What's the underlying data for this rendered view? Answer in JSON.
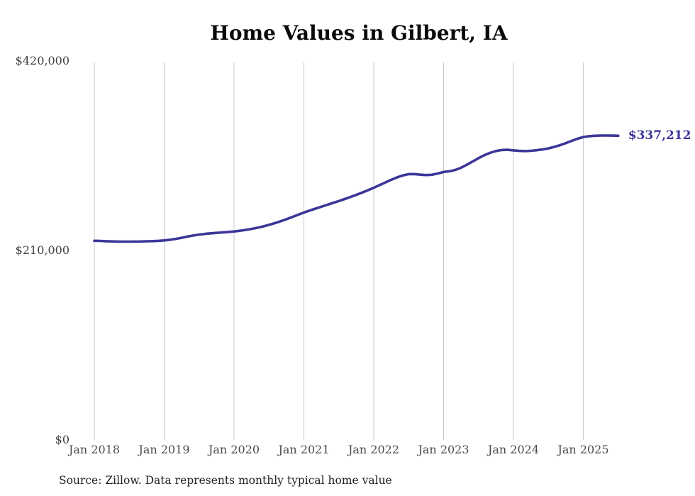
{
  "chart": {
    "title": "Home Values in Gilbert, IA",
    "end_label": "$337,212",
    "source_note": "Source: Zillow. Data represents monthly typical home value"
  },
  "chart_data": {
    "type": "line",
    "title": "Home Values in Gilbert, IA",
    "xlabel": "",
    "ylabel": "",
    "x_start": "Jan 2018",
    "x_end": "Jul 2025",
    "frequency": "monthly",
    "xtick_labels": [
      "Jan 2018",
      "Jan 2019",
      "Jan 2020",
      "Jan 2021",
      "Jan 2022",
      "Jan 2023",
      "Jan 2024",
      "Jan 2025"
    ],
    "ytick_values": [
      0,
      210000,
      420000
    ],
    "ytick_labels": [
      "$0",
      "$210,000",
      "$420,000"
    ],
    "ylim": [
      0,
      420000
    ],
    "grid": "vertical-only",
    "legend_position": "none",
    "line_color": "#3c3699",
    "gridline_color": "#c9c9c9",
    "final_value": 337212,
    "final_value_label": "$337,212",
    "series": [
      {
        "name": "Typical home value",
        "values": [
          220800,
          220600,
          220300,
          220100,
          219900,
          219800,
          219800,
          219900,
          220000,
          220200,
          220400,
          220700,
          221200,
          221900,
          222900,
          224100,
          225400,
          226600,
          227600,
          228400,
          229000,
          229500,
          230000,
          230500,
          231100,
          231900,
          232800,
          233900,
          235200,
          236700,
          238400,
          240300,
          242400,
          244700,
          247100,
          249600,
          252100,
          254300,
          256400,
          258500,
          260600,
          262700,
          264800,
          267000,
          269300,
          271700,
          274200,
          276800,
          279500,
          282400,
          285400,
          288300,
          291000,
          293200,
          294600,
          294700,
          294000,
          293600,
          293900,
          295300,
          297000,
          297800,
          299300,
          301700,
          305000,
          308600,
          312300,
          315600,
          318300,
          320300,
          321400,
          321600,
          321000,
          320400,
          320200,
          320500,
          321100,
          322000,
          323200,
          324800,
          326700,
          329000,
          331500,
          333900,
          335800,
          336700,
          337200,
          337400,
          337400,
          337300,
          337212
        ]
      }
    ]
  }
}
